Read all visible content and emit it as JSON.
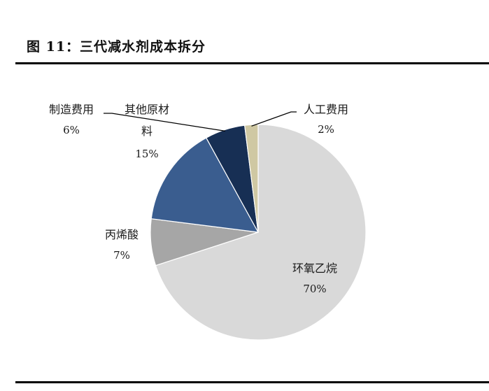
{
  "figure": {
    "title": "图 11：三代减水剂成本拆分"
  },
  "chart_data": {
    "type": "pie",
    "slices": [
      {
        "name": "环氧乙烷",
        "value": 70,
        "label": "70%",
        "color": "#d9d9d9"
      },
      {
        "name": "丙烯酸",
        "value": 7,
        "label": "7%",
        "color": "#a6a6a6"
      },
      {
        "name": "其他原材料",
        "value": 15,
        "label": "15%",
        "color": "#3a5d8f",
        "name_lines": [
          "其他原材",
          "料"
        ]
      },
      {
        "name": "制造费用",
        "value": 6,
        "label": "6%",
        "color": "#172f54"
      },
      {
        "name": "人工费用",
        "value": 2,
        "label": "2%",
        "color": "#cfc8a3"
      }
    ]
  }
}
